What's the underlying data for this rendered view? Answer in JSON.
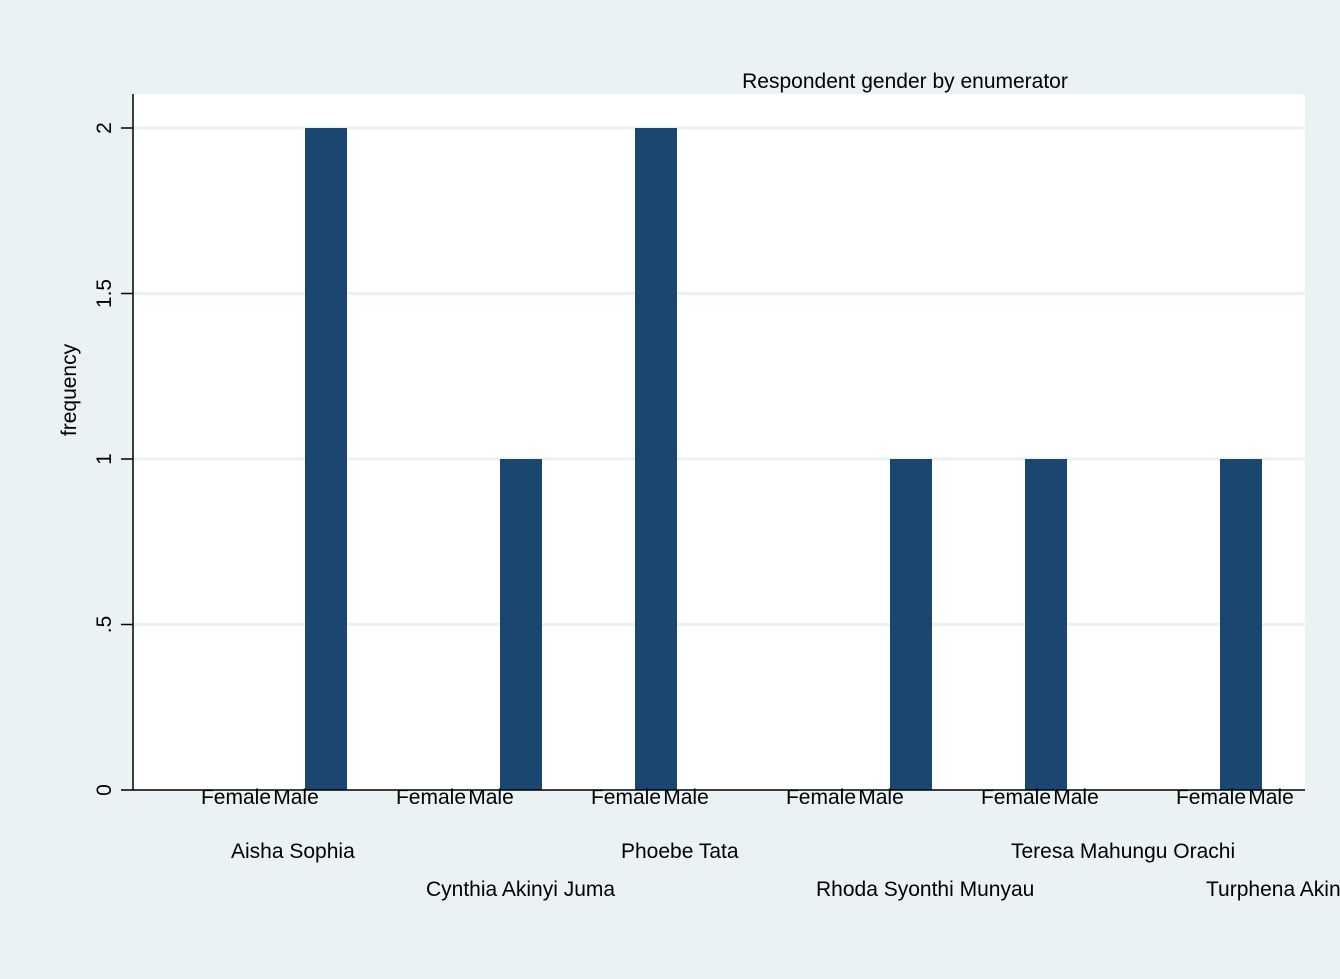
{
  "chart_data": {
    "type": "bar",
    "title": "Respondent gender by enumerator",
    "ylabel": "frequency",
    "xlabel": "",
    "ylim": [
      0,
      2.1
    ],
    "yticks": [
      {
        "value": 0,
        "label": "0"
      },
      {
        "value": 0.5,
        "label": ".5"
      },
      {
        "value": 1,
        "label": "1"
      },
      {
        "value": 1.5,
        "label": "1.5"
      },
      {
        "value": 2,
        "label": "2"
      }
    ],
    "grid": true,
    "legend": "none",
    "bar_color": "#1a476f",
    "plot_background": "#ffffff",
    "page_background": "#eaf2f3",
    "gridline_color": "#eaf2f3",
    "subcategories": [
      "Female",
      "Male"
    ],
    "groups": [
      {
        "name": "Aisha Sophia",
        "values": [
          0,
          2
        ]
      },
      {
        "name": "Cynthia Akinyi Juma",
        "values": [
          0,
          1
        ]
      },
      {
        "name": "Phoebe Tata",
        "values": [
          2,
          0
        ]
      },
      {
        "name": "Rhoda Syonthi Munyau",
        "values": [
          0,
          1
        ]
      },
      {
        "name": "Teresa Mahungu Orachi",
        "values": [
          1,
          0
        ]
      },
      {
        "name": "Turphena Akinyi",
        "values": [
          1,
          0
        ]
      }
    ]
  }
}
